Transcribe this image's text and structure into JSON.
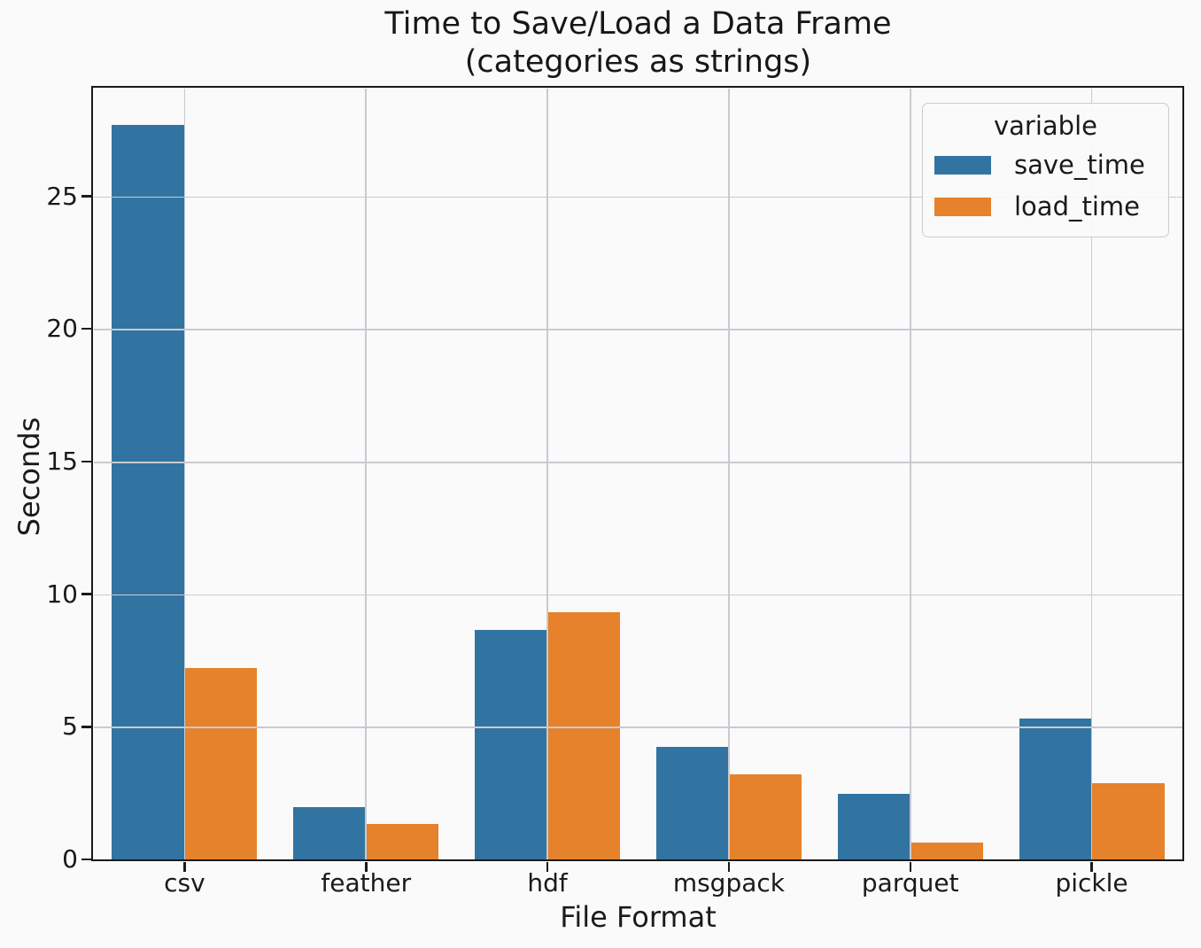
{
  "chart": {
    "title_line1": "Time to Save/Load a Data Frame",
    "title_line2": "(categories as strings)",
    "xlabel": "File Format",
    "ylabel": "Seconds",
    "legend": {
      "title": "variable",
      "position": "upper right"
    }
  },
  "chart_data": {
    "type": "bar",
    "categories": [
      "csv",
      "feather",
      "hdf",
      "msgpack",
      "parquet",
      "pickle"
    ],
    "series": [
      {
        "name": "save_time",
        "color": "#3274a1",
        "values": [
          27.7,
          1.98,
          8.66,
          4.25,
          2.47,
          5.32
        ]
      },
      {
        "name": "load_time",
        "color": "#e5822b",
        "values": [
          7.22,
          1.34,
          9.33,
          3.2,
          0.65,
          2.86
        ]
      }
    ],
    "title": "Time to Save/Load a Data Frame\n(categories as strings)",
    "xlabel": "File Format",
    "ylabel": "Seconds",
    "ylim": [
      0,
      29.06
    ],
    "yticks": [
      0,
      5,
      10,
      15,
      20,
      25
    ],
    "grid": true,
    "grid_over_bars": true,
    "legend_position": "upper right"
  },
  "colors": {
    "save_time": "#3274a1",
    "load_time": "#e5822b",
    "gridline": "#c9cad1",
    "spine": "#1a1a1a",
    "background": "#fafafb",
    "legend_border": "#cccccc"
  }
}
